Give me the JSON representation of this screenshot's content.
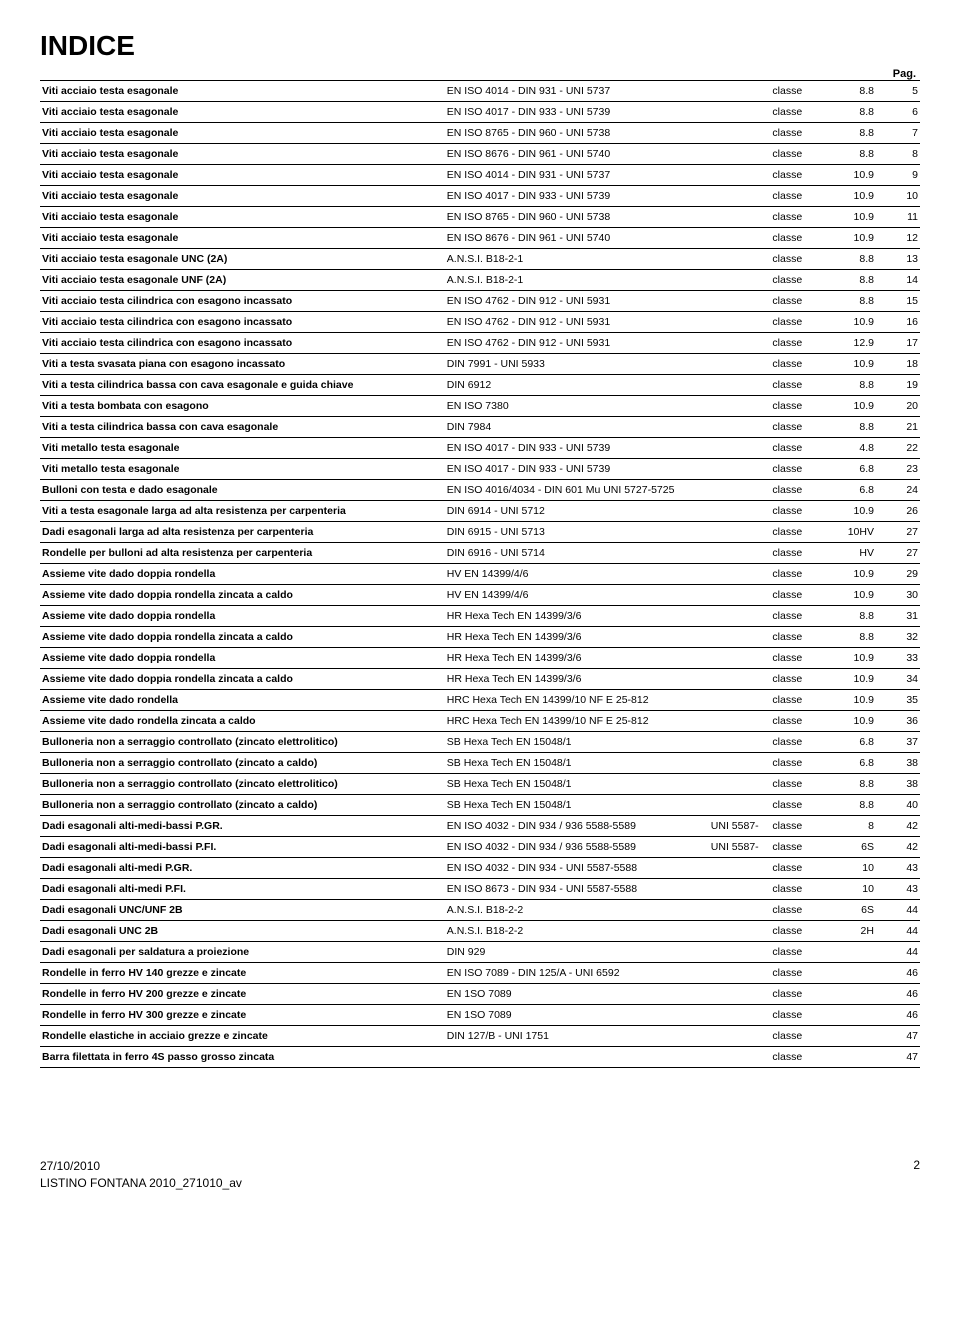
{
  "title": "INDICE",
  "pag_label": "Pag.",
  "footer": {
    "date": "27/10/2010",
    "doc": "LISTINO FONTANA 2010_271010_av",
    "page_num": "2"
  },
  "rows": [
    {
      "desc": "Viti acciaio testa esagonale",
      "std": "EN ISO 4014 - DIN 931 - UNI 5737",
      "uni": "",
      "classe": "classe",
      "val": "8.8",
      "pag": "5"
    },
    {
      "desc": "Viti acciaio testa esagonale",
      "std": "EN ISO 4017 - DIN 933 - UNI 5739",
      "uni": "",
      "classe": "classe",
      "val": "8.8",
      "pag": "6"
    },
    {
      "desc": "Viti acciaio testa esagonale",
      "std": "EN ISO 8765 - DIN 960 - UNI 5738",
      "uni": "",
      "classe": "classe",
      "val": "8.8",
      "pag": "7"
    },
    {
      "desc": "Viti acciaio testa esagonale",
      "std": "EN ISO 8676 - DIN 961 - UNI 5740",
      "uni": "",
      "classe": "classe",
      "val": "8.8",
      "pag": "8"
    },
    {
      "desc": "Viti acciaio testa esagonale",
      "std": "EN ISO 4014 - DIN 931 - UNI 5737",
      "uni": "",
      "classe": "classe",
      "val": "10.9",
      "pag": "9"
    },
    {
      "desc": "Viti acciaio testa esagonale",
      "std": "EN ISO 4017 - DIN 933 - UNI 5739",
      "uni": "",
      "classe": "classe",
      "val": "10.9",
      "pag": "10"
    },
    {
      "desc": "Viti acciaio testa esagonale",
      "std": "EN ISO 8765 - DIN 960 - UNI 5738",
      "uni": "",
      "classe": "classe",
      "val": "10.9",
      "pag": "11"
    },
    {
      "desc": "Viti acciaio testa esagonale",
      "std": "EN ISO 8676 - DIN 961 - UNI 5740",
      "uni": "",
      "classe": "classe",
      "val": "10.9",
      "pag": "12"
    },
    {
      "desc": "Viti acciaio testa esagonale UNC (2A)",
      "std": "A.N.S.I.  B18-2-1",
      "uni": "",
      "classe": "classe",
      "val": "8.8",
      "pag": "13"
    },
    {
      "desc": "Viti acciaio testa esagonale UNF (2A)",
      "std": "A.N.S.I.  B18-2-1",
      "uni": "",
      "classe": "classe",
      "val": "8.8",
      "pag": "14"
    },
    {
      "desc": "Viti acciaio testa cilindrica con esagono incassato",
      "std": "EN ISO 4762 - DIN 912 - UNI 5931",
      "uni": "",
      "classe": "classe",
      "val": "8.8",
      "pag": "15"
    },
    {
      "desc": "Viti acciaio testa cilindrica con esagono incassato",
      "std": "EN ISO 4762 - DIN 912 - UNI 5931",
      "uni": "",
      "classe": "classe",
      "val": "10.9",
      "pag": "16"
    },
    {
      "desc": "Viti acciaio testa cilindrica con esagono incassato",
      "std": "EN ISO 4762 - DIN 912 - UNI 5931",
      "uni": "",
      "classe": "classe",
      "val": "12.9",
      "pag": "17"
    },
    {
      "desc": "Viti a testa svasata piana con esagono incassato",
      "std": "DIN 7991 - UNI 5933",
      "uni": "",
      "classe": "classe",
      "val": "10.9",
      "pag": "18"
    },
    {
      "desc": "Viti a testa cilindrica bassa con cava esagonale e guida chiave",
      "std": "DIN 6912",
      "uni": "",
      "classe": "classe",
      "val": "8.8",
      "pag": "19"
    },
    {
      "desc": "Viti a testa bombata con esagono",
      "std": "EN ISO 7380",
      "uni": "",
      "classe": "classe",
      "val": "10.9",
      "pag": "20"
    },
    {
      "desc": "Viti a testa cilindrica bassa con cava esagonale",
      "std": "DIN 7984",
      "uni": "",
      "classe": "classe",
      "val": "8.8",
      "pag": "21"
    },
    {
      "desc": "Viti metallo testa esagonale",
      "std": "EN ISO 4017 - DIN 933 - UNI 5739",
      "uni": "",
      "classe": "classe",
      "val": "4.8",
      "pag": "22"
    },
    {
      "desc": "Viti metallo testa esagonale",
      "std": "EN ISO 4017 - DIN 933 - UNI 5739",
      "uni": "",
      "classe": "classe",
      "val": "6.8",
      "pag": "23"
    },
    {
      "desc": "Bulloni con testa e dado esagonale",
      "std": "EN ISO 4016/4034 - DIN 601 Mu UNI 5727-5725",
      "uni": "",
      "classe": "classe",
      "val": "6.8",
      "pag": "24"
    },
    {
      "desc": "Viti a testa esagonale larga ad alta resistenza per carpenteria",
      "std": "DIN 6914 - UNI 5712",
      "uni": "",
      "classe": "classe",
      "val": "10.9",
      "pag": "26"
    },
    {
      "desc": "Dadi esagonali larga ad alta resistenza per carpenteria",
      "std": "DIN 6915 - UNI 5713",
      "uni": "",
      "classe": "classe",
      "val": "10HV",
      "pag": "27"
    },
    {
      "desc": "Rondelle per bulloni ad alta resistenza per carpenteria",
      "std": "DIN 6916 - UNI 5714",
      "uni": "",
      "classe": "classe",
      "val": "HV",
      "pag": "27"
    },
    {
      "desc": "Assieme vite dado doppia rondella",
      "std": "HV EN 14399/4/6",
      "uni": "",
      "classe": "classe",
      "val": "10.9",
      "pag": "29"
    },
    {
      "desc": "Assieme vite dado doppia rondella zincata a caldo",
      "std": "HV EN 14399/4/6",
      "uni": "",
      "classe": "classe",
      "val": "10.9",
      "pag": "30"
    },
    {
      "desc": "Assieme vite dado doppia rondella",
      "std": "HR Hexa Tech EN 14399/3/6",
      "uni": "",
      "classe": "classe",
      "val": "8.8",
      "pag": "31"
    },
    {
      "desc": "Assieme vite dado doppia rondella zincata a caldo",
      "std": "HR Hexa Tech EN 14399/3/6",
      "uni": "",
      "classe": "classe",
      "val": "8.8",
      "pag": "32"
    },
    {
      "desc": "Assieme vite dado doppia rondella",
      "std": "HR Hexa Tech EN 14399/3/6",
      "uni": "",
      "classe": "classe",
      "val": "10.9",
      "pag": "33"
    },
    {
      "desc": "Assieme vite dado doppia rondella zincata a caldo",
      "std": "HR Hexa Tech EN 14399/3/6",
      "uni": "",
      "classe": "classe",
      "val": "10.9",
      "pag": "34"
    },
    {
      "desc": "Assieme vite dado rondella",
      "std": "HRC Hexa Tech EN 14399/10 NF E 25-812",
      "uni": "",
      "classe": "classe",
      "val": "10.9",
      "pag": "35"
    },
    {
      "desc": "Assieme vite dado rondella zincata a caldo",
      "std": "HRC Hexa Tech EN 14399/10 NF E 25-812",
      "uni": "",
      "classe": "classe",
      "val": "10.9",
      "pag": "36"
    },
    {
      "desc": "Bulloneria non a serraggio controllato (zincato elettrolitico)",
      "std": "SB Hexa Tech EN 15048/1",
      "uni": "",
      "classe": "classe",
      "val": "6.8",
      "pag": "37"
    },
    {
      "desc": "Bulloneria non a serraggio controllato (zincato a caldo)",
      "std": "SB Hexa Tech EN 15048/1",
      "uni": "",
      "classe": "classe",
      "val": "6.8",
      "pag": "38"
    },
    {
      "desc": "Bulloneria non a serraggio controllato (zincato elettrolitico)",
      "std": "SB Hexa Tech EN 15048/1",
      "uni": "",
      "classe": "classe",
      "val": "8.8",
      "pag": "38"
    },
    {
      "desc": "Bulloneria non a serraggio controllato (zincato a caldo)",
      "std": "SB Hexa Tech EN 15048/1",
      "uni": "",
      "classe": "classe",
      "val": "8.8",
      "pag": "40"
    },
    {
      "desc": "Dadi esagonali alti-medi-bassi P.GR.",
      "std": "EN ISO 4032 - DIN 934 / 936 5588-5589",
      "uni": "UNI  5587-",
      "classe": "classe",
      "val": "8",
      "pag": "42"
    },
    {
      "desc": "Dadi esagonali alti-medi-bassi P.FI.",
      "std": "EN ISO 4032 - DIN 934 / 936 5588-5589",
      "uni": "UNI  5587-",
      "classe": "classe",
      "val": "6S",
      "pag": "42"
    },
    {
      "desc": "Dadi esagonali alti-medi P.GR.",
      "std": "EN ISO 4032 - DIN 934  - UNI  5587-5588",
      "uni": "",
      "classe": "classe",
      "val": "10",
      "pag": "43"
    },
    {
      "desc": "Dadi esagonali alti-medi P.FI.",
      "std": "EN ISO 8673 - DIN 934  - UNI  5587-5588",
      "uni": "",
      "classe": "classe",
      "val": "10",
      "pag": "43"
    },
    {
      "desc": "Dadi esagonali UNC/UNF 2B",
      "std": "A.N.S.I.  B18-2-2",
      "uni": "",
      "classe": "classe",
      "val": "6S",
      "pag": "44"
    },
    {
      "desc": "Dadi esagonali UNC 2B",
      "std": "A.N.S.I.  B18-2-2",
      "uni": "",
      "classe": "classe",
      "val": "2H",
      "pag": "44"
    },
    {
      "desc": "Dadi esagonali per saldatura a proiezione",
      "std": "DIN 929",
      "uni": "",
      "classe": "classe",
      "val": "",
      "pag": "44"
    },
    {
      "desc": "Rondelle in ferro HV 140 grezze e zincate",
      "std": "EN ISO 7089 - DIN 125/A - UNI 6592",
      "uni": "",
      "classe": "classe",
      "val": "",
      "pag": "46"
    },
    {
      "desc": "Rondelle in ferro HV 200 grezze e zincate",
      "std": "EN 1SO 7089",
      "uni": "",
      "classe": "classe",
      "val": "",
      "pag": "46"
    },
    {
      "desc": "Rondelle in ferro HV 300 grezze e zincate",
      "std": "EN 1SO 7089",
      "uni": "",
      "classe": "classe",
      "val": "",
      "pag": "46"
    },
    {
      "desc": "Rondelle elastiche in acciaio grezze e zincate",
      "std": "DIN 127/B - UNI 1751",
      "uni": "",
      "classe": "classe",
      "val": "",
      "pag": "47"
    },
    {
      "desc": "Barra filettata in ferro 4S passo grosso zincata",
      "std": "",
      "uni": "",
      "classe": "classe",
      "val": "",
      "pag": "47"
    }
  ]
}
